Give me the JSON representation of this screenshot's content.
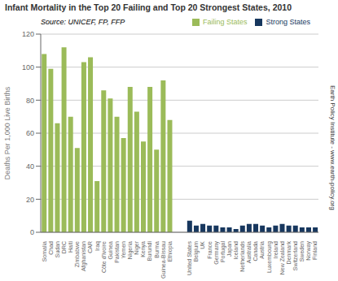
{
  "chart_data": {
    "type": "bar",
    "title": "Infant Mortality in the Top 20 Failing and Top 20 Strongest States, 2010",
    "y_label": "Deaths Per 1,000 Live Births",
    "annotations": [
      "Source: UNICEF, FP, FFP",
      "Earth Policy Institute - www.earth-policy.org"
    ],
    "categories": [
      "Somalia",
      "Chad",
      "Sudan",
      "DRC",
      "Haiti",
      "Zimbabwe",
      "Afghanistan",
      "CAR",
      "Iraq",
      "Côte d'Ivoire",
      "Guinea",
      "Pakistan",
      "Yemen",
      "Nigeria",
      "Niger",
      "Kenya",
      "Burundi",
      "Burma",
      "Guinea-Bissau",
      "Ethiopia",
      "United States",
      "Belgium",
      "UK",
      "France",
      "Germany",
      "Portugal",
      "Japan",
      "Iceland",
      "Netherlands",
      "Australia",
      "Canada",
      "Austria",
      "Luxembourg",
      "Ireland",
      "New Zealand",
      "Denmark",
      "Switzerland",
      "Sweden",
      "Norway",
      "Finland"
    ],
    "series": [
      {
        "name": "Failing States",
        "color": "#9BBB59",
        "values": [
          108,
          99,
          66,
          112,
          70,
          51,
          103,
          106,
          31,
          86,
          81,
          70,
          57,
          88,
          73,
          55,
          88,
          50,
          92,
          68,
          null,
          null,
          null,
          null,
          null,
          null,
          null,
          null,
          null,
          null,
          null,
          null,
          null,
          null,
          null,
          null,
          null,
          null,
          null,
          null
        ]
      },
      {
        "name": "Strong States",
        "color": "#17375E",
        "values": [
          null,
          null,
          null,
          null,
          null,
          null,
          null,
          null,
          null,
          null,
          null,
          null,
          null,
          null,
          null,
          null,
          null,
          null,
          null,
          null,
          7,
          4,
          5,
          4,
          4,
          3,
          3,
          2,
          4,
          5,
          5,
          4,
          3,
          4,
          5,
          4,
          4,
          3,
          3,
          3
        ]
      }
    ],
    "ylim": [
      0,
      120
    ],
    "yticks": [
      0,
      20,
      40,
      60,
      80,
      100,
      120
    ],
    "grid": true,
    "legend": "upper right"
  }
}
